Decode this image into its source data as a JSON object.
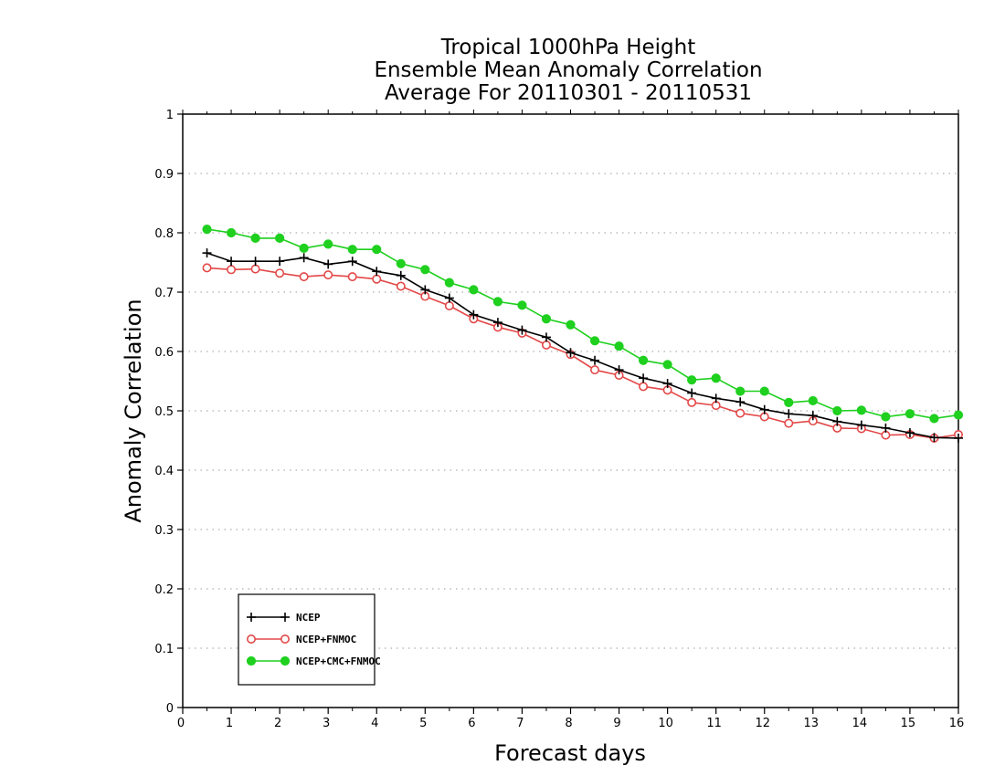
{
  "chart_data": {
    "type": "line",
    "title": [
      "Tropical 1000hPa Height",
      "Ensemble Mean Anomaly Correlation",
      "Average For 20110301 - 20110531"
    ],
    "xlabel": "Forecast days",
    "ylabel": "Anomaly Correlation",
    "xlim": [
      0,
      16
    ],
    "ylim": [
      0,
      1
    ],
    "xticks": [
      "0",
      "1",
      "2",
      "3",
      "4",
      "5",
      "6",
      "7",
      "8",
      "9",
      "10",
      "11",
      "12",
      "13",
      "14",
      "15",
      "16"
    ],
    "yticks": [
      "0",
      "0.1",
      "0.2",
      "0.3",
      "0.4",
      "0.5",
      "0.6",
      "0.7",
      "0.8",
      "0.9",
      "1"
    ],
    "grid": "dotted-horizontal",
    "legend": "bottom-left",
    "x": [
      0.5,
      1,
      1.5,
      2,
      2.5,
      3,
      3.5,
      4,
      4.5,
      5,
      5.5,
      6,
      6.5,
      7,
      7.5,
      8,
      8.5,
      9,
      9.5,
      10,
      10.5,
      11,
      11.5,
      12,
      12.5,
      13,
      13.5,
      14,
      14.5,
      15,
      15.5,
      16
    ],
    "series": [
      {
        "name": "NCEP",
        "color": "#000000",
        "marker": "plus",
        "values": [
          0.766,
          0.752,
          0.752,
          0.752,
          0.758,
          0.747,
          0.752,
          0.735,
          0.728,
          0.704,
          0.69,
          0.662,
          0.649,
          0.636,
          0.624,
          0.598,
          0.585,
          0.569,
          0.555,
          0.546,
          0.53,
          0.521,
          0.515,
          0.502,
          0.495,
          0.492,
          0.482,
          0.476,
          0.471,
          0.463,
          0.455,
          0.454
        ]
      },
      {
        "name": "NCEP+FNMOC",
        "color": "#e34848",
        "marker": "open-circle",
        "values": [
          0.741,
          0.738,
          0.739,
          0.732,
          0.726,
          0.729,
          0.726,
          0.722,
          0.71,
          0.693,
          0.677,
          0.655,
          0.641,
          0.631,
          0.611,
          0.595,
          0.569,
          0.56,
          0.541,
          0.535,
          0.514,
          0.509,
          0.496,
          0.49,
          0.479,
          0.483,
          0.471,
          0.47,
          0.459,
          0.46,
          0.454,
          0.46
        ]
      },
      {
        "name": "NCEP+CMC+FNMOC",
        "color": "#1fd01f",
        "marker": "filled-circle",
        "values": [
          0.806,
          0.8,
          0.791,
          0.791,
          0.774,
          0.781,
          0.772,
          0.772,
          0.748,
          0.738,
          0.716,
          0.704,
          0.684,
          0.678,
          0.655,
          0.645,
          0.618,
          0.609,
          0.585,
          0.578,
          0.552,
          0.555,
          0.533,
          0.533,
          0.514,
          0.517,
          0.5,
          0.501,
          0.49,
          0.495,
          0.487,
          0.493
        ]
      }
    ]
  }
}
